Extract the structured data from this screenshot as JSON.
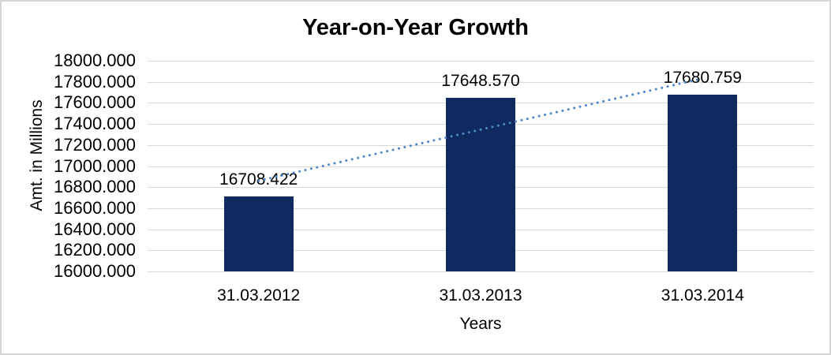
{
  "chart_data": {
    "type": "bar",
    "title": "Year-on-Year Growth",
    "xlabel": "Years",
    "ylabel": "Amt. in Millions",
    "categories": [
      "31.03.2012",
      "31.03.2013",
      "31.03.2014"
    ],
    "values": [
      16708.422,
      17648.57,
      17680.759
    ],
    "data_labels": [
      "16708.422",
      "17648.570",
      "17680.759"
    ],
    "ylim": [
      16000,
      18000
    ],
    "ytick_step": 200,
    "ytick_decimals": 3,
    "grid": true,
    "legend": false,
    "trendline": {
      "type": "linear",
      "style": "dotted"
    },
    "colors": {
      "bar": "#0E2A5F",
      "trendline": "#4F86C6",
      "gridline": "#D9D9D9",
      "text": "#000000",
      "background": "#FFFFFF",
      "frame_border": "#D5D5D5"
    }
  }
}
